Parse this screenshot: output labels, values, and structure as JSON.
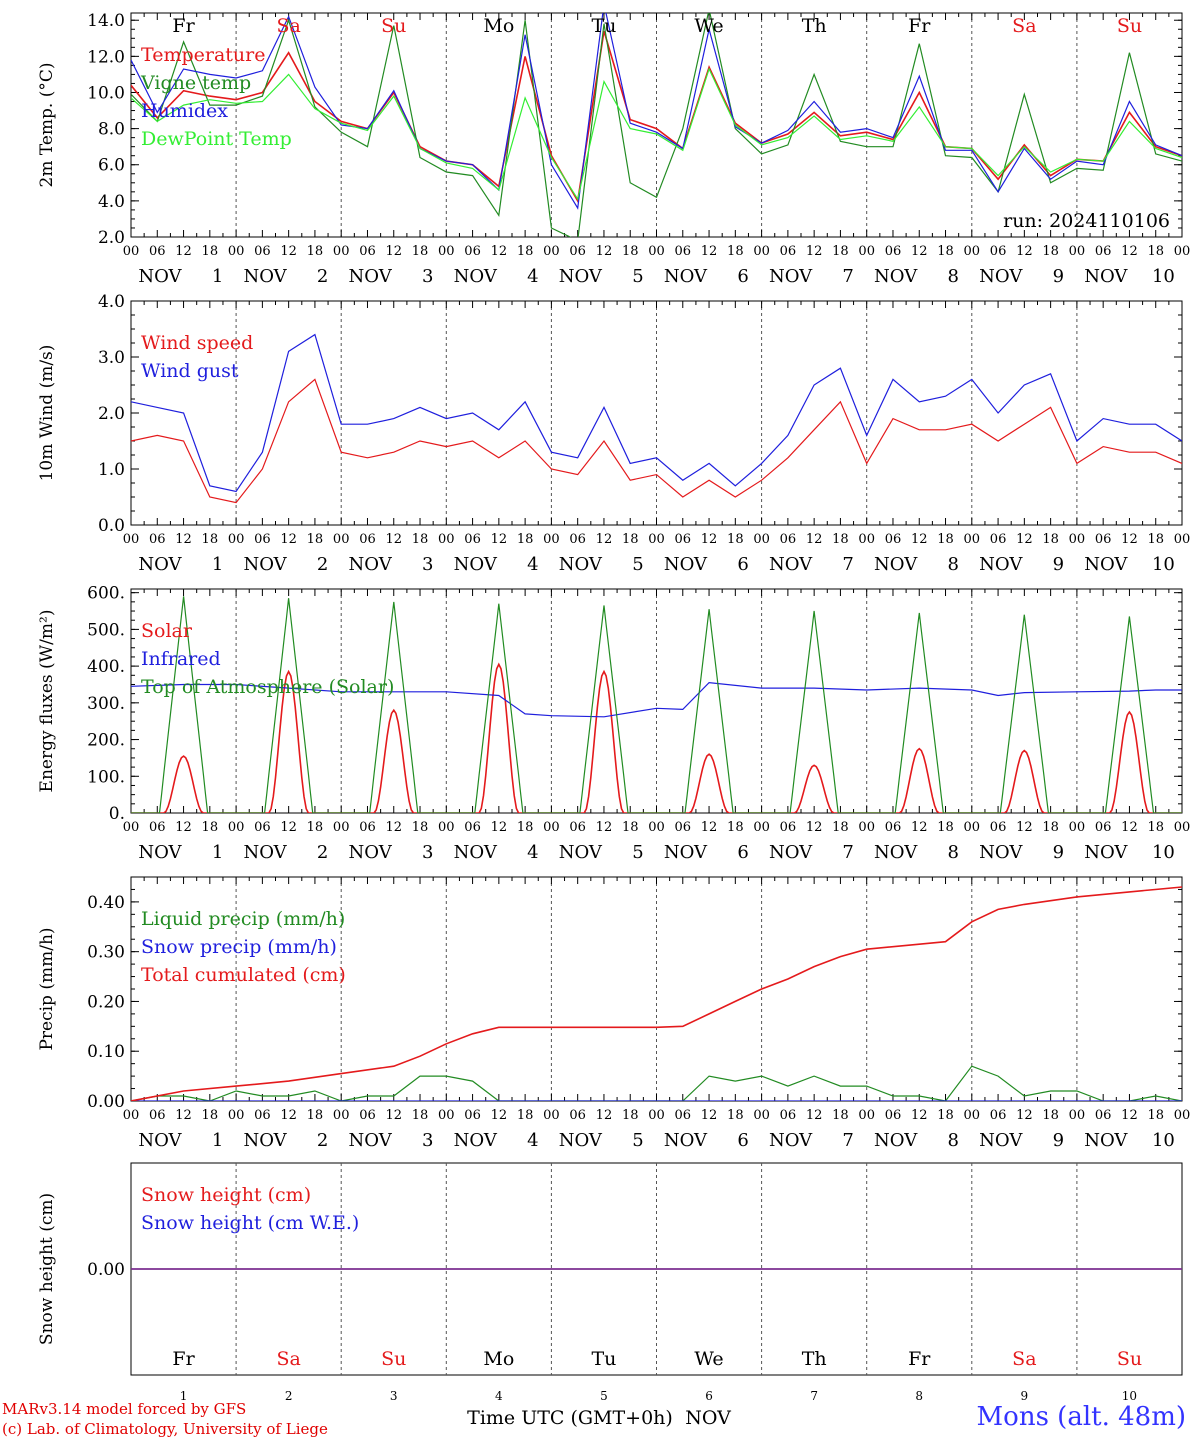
{
  "colors": {
    "red": "#e41a1c",
    "green": "#228b22",
    "blue": "#1f1fdd",
    "lightgreen": "#33ee33",
    "purple": "#7b2d8e",
    "weekend": "#e41a1c",
    "weekday": "#000000"
  },
  "run_label": "run: 2024110106",
  "footer": {
    "credit_line1": "MARv3.14 model forced by GFS",
    "credit_line2": "(c) Lab. of Climatology, University of Liege",
    "x_title": "Time UTC (GMT+0h)",
    "x_title_month": "NOV",
    "station": "Mons (alt. 48m)"
  },
  "chart_data": [
    {
      "type": "line",
      "ylabel": "2m Temp. (°C)",
      "ylim": [
        2.0,
        14.4
      ],
      "yticks": [
        "2.0",
        "4.0",
        "6.0",
        "8.0",
        "10.0",
        "12.0",
        "14.0"
      ],
      "yticks_values": [
        2,
        4,
        6,
        8,
        10,
        12,
        14
      ],
      "day_names_top": [
        "Fr",
        "Sa",
        "Su",
        "Mo",
        "Tu",
        "We",
        "Th",
        "Fr",
        "Sa",
        "Su"
      ],
      "weekend_days": [
        "Sa",
        "Su"
      ],
      "x_hour_labels": [
        "00",
        "06",
        "12",
        "18"
      ],
      "date_labels": [
        "NOV 1",
        "NOV 2",
        "NOV 3",
        "NOV 4",
        "NOV 5",
        "NOV 6",
        "NOV 7",
        "NOV 8",
        "NOV 9",
        "NOV 10"
      ],
      "x_unit": "hours since 2024-11-01 00 UTC",
      "xlim": [
        0,
        240
      ],
      "series": [
        {
          "name": "Temperature",
          "color": "#e41a1c",
          "x": [
            0,
            6,
            12,
            18,
            24,
            30,
            36,
            42,
            48,
            54,
            60,
            66,
            72,
            78,
            84,
            90,
            96,
            102,
            108,
            114,
            120,
            126,
            132,
            138,
            144,
            150,
            156,
            162,
            168,
            174,
            180,
            186,
            192,
            198,
            204,
            210,
            216,
            222,
            228,
            234,
            240
          ],
          "y": [
            10.4,
            8.6,
            10.1,
            9.8,
            9.6,
            10.0,
            12.2,
            9.5,
            8.4,
            8.0,
            10.0,
            7.0,
            6.2,
            6.0,
            4.8,
            12.0,
            6.5,
            4.0,
            13.4,
            8.5,
            8.0,
            6.9,
            11.4,
            8.3,
            7.2,
            7.7,
            8.9,
            7.6,
            7.8,
            7.4,
            10.0,
            7.0,
            6.9,
            5.2,
            7.1,
            5.4,
            6.3,
            6.2,
            8.9,
            7.0,
            6.5
          ]
        },
        {
          "name": "Vigne temp",
          "color": "#228b22",
          "x": [
            0,
            6,
            12,
            18,
            24,
            30,
            36,
            42,
            48,
            54,
            60,
            66,
            72,
            78,
            84,
            90,
            96,
            102,
            108,
            114,
            120,
            126,
            132,
            138,
            144,
            150,
            156,
            162,
            168,
            174,
            180,
            186,
            192,
            198,
            204,
            210,
            216,
            222,
            228,
            234,
            240
          ],
          "y": [
            9.9,
            8.4,
            12.8,
            9.3,
            9.3,
            9.8,
            14.0,
            9.2,
            7.8,
            7.0,
            13.7,
            6.4,
            5.6,
            5.4,
            3.2,
            14.0,
            2.5,
            1.8,
            13.8,
            5.0,
            4.2,
            8.0,
            14.6,
            8.0,
            6.6,
            7.1,
            11.0,
            7.3,
            7.0,
            7.0,
            12.7,
            6.5,
            6.4,
            4.5,
            9.9,
            5.0,
            5.8,
            5.7,
            12.2,
            6.6,
            6.2
          ]
        },
        {
          "name": "Humidex",
          "color": "#1f1fdd",
          "x": [
            0,
            6,
            12,
            18,
            24,
            30,
            36,
            42,
            48,
            54,
            60,
            66,
            72,
            78,
            84,
            90,
            96,
            102,
            108,
            114,
            120,
            126,
            132,
            138,
            144,
            150,
            156,
            162,
            168,
            174,
            180,
            186,
            192,
            198,
            204,
            210,
            216,
            222,
            228,
            234,
            240
          ],
          "y": [
            11.8,
            8.9,
            11.3,
            11.0,
            10.8,
            11.2,
            14.2,
            10.3,
            8.2,
            8.0,
            10.1,
            6.9,
            6.2,
            6.0,
            4.6,
            13.2,
            6.0,
            3.6,
            14.9,
            8.3,
            7.8,
            6.9,
            13.5,
            8.1,
            7.2,
            7.9,
            9.5,
            7.8,
            8.0,
            7.5,
            10.9,
            6.8,
            6.8,
            4.5,
            6.9,
            5.2,
            6.2,
            6.0,
            9.5,
            7.1,
            6.5
          ]
        },
        {
          "name": "DewPoint Temp",
          "color": "#33ee33",
          "x": [
            0,
            6,
            12,
            18,
            24,
            30,
            36,
            42,
            48,
            54,
            60,
            66,
            72,
            78,
            84,
            90,
            96,
            102,
            108,
            114,
            120,
            126,
            132,
            138,
            144,
            150,
            156,
            162,
            168,
            174,
            180,
            186,
            192,
            198,
            204,
            210,
            216,
            222,
            228,
            234,
            240
          ],
          "y": [
            9.7,
            8.4,
            9.3,
            9.6,
            9.4,
            9.5,
            11.0,
            9.1,
            8.3,
            7.9,
            9.8,
            6.9,
            6.1,
            5.8,
            4.6,
            9.7,
            6.4,
            4.1,
            10.6,
            8.0,
            7.7,
            6.8,
            11.3,
            8.2,
            7.1,
            7.5,
            8.7,
            7.4,
            7.6,
            7.3,
            9.2,
            7.0,
            6.9,
            5.4,
            7.0,
            5.6,
            6.3,
            6.2,
            8.4,
            6.9,
            6.4
          ]
        }
      ]
    },
    {
      "type": "line",
      "ylabel": "10m Wind (m/s)",
      "ylim": [
        0.0,
        4.0
      ],
      "yticks": [
        "0.0",
        "1.0",
        "2.0",
        "3.0",
        "4.0"
      ],
      "yticks_values": [
        0,
        1,
        2,
        3,
        4
      ],
      "date_labels": [
        "NOV 1",
        "NOV 2",
        "NOV 3",
        "NOV 4",
        "NOV 5",
        "NOV 6",
        "NOV 7",
        "NOV 8",
        "NOV 9",
        "NOV 10"
      ],
      "xlim": [
        0,
        240
      ],
      "series": [
        {
          "name": "Wind speed",
          "color": "#e41a1c",
          "x": [
            0,
            6,
            12,
            18,
            24,
            30,
            36,
            42,
            48,
            54,
            60,
            66,
            72,
            78,
            84,
            90,
            96,
            102,
            108,
            114,
            120,
            126,
            132,
            138,
            144,
            150,
            156,
            162,
            168,
            174,
            180,
            186,
            192,
            198,
            204,
            210,
            216,
            222,
            228,
            234,
            240
          ],
          "y": [
            1.5,
            1.6,
            1.5,
            0.5,
            0.4,
            1.0,
            2.2,
            2.6,
            1.3,
            1.2,
            1.3,
            1.5,
            1.4,
            1.5,
            1.2,
            1.5,
            1.0,
            0.9,
            1.5,
            0.8,
            0.9,
            0.5,
            0.8,
            0.5,
            0.8,
            1.2,
            1.7,
            2.2,
            1.1,
            1.9,
            1.7,
            1.7,
            1.8,
            1.5,
            1.8,
            2.1,
            1.1,
            1.4,
            1.3,
            1.3,
            1.1
          ]
        },
        {
          "name": "Wind gust",
          "color": "#1f1fdd",
          "x": [
            0,
            6,
            12,
            18,
            24,
            30,
            36,
            42,
            48,
            54,
            60,
            66,
            72,
            78,
            84,
            90,
            96,
            102,
            108,
            114,
            120,
            126,
            132,
            138,
            144,
            150,
            156,
            162,
            168,
            174,
            180,
            186,
            192,
            198,
            204,
            210,
            216,
            222,
            228,
            234,
            240
          ],
          "y": [
            2.2,
            2.1,
            2.0,
            0.7,
            0.6,
            1.3,
            3.1,
            3.4,
            1.8,
            1.8,
            1.9,
            2.1,
            1.9,
            2.0,
            1.7,
            2.2,
            1.3,
            1.2,
            2.1,
            1.1,
            1.2,
            0.8,
            1.1,
            0.7,
            1.1,
            1.6,
            2.5,
            2.8,
            1.6,
            2.6,
            2.2,
            2.3,
            2.6,
            2.0,
            2.5,
            2.7,
            1.5,
            1.9,
            1.8,
            1.8,
            1.5
          ]
        }
      ]
    },
    {
      "type": "line",
      "ylabel": "Energy fluxes (W/m²)",
      "ylim": [
        0,
        610
      ],
      "yticks": [
        "0.",
        "100.",
        "200.",
        "300.",
        "400.",
        "500.",
        "600."
      ],
      "yticks_values": [
        0,
        100,
        200,
        300,
        400,
        500,
        600
      ],
      "date_labels": [
        "NOV 1",
        "NOV 2",
        "NOV 3",
        "NOV 4",
        "NOV 5",
        "NOV 6",
        "NOV 7",
        "NOV 8",
        "NOV 9",
        "NOV 10"
      ],
      "xlim": [
        0,
        240
      ],
      "series": [
        {
          "name": "Solar",
          "color": "#e41a1c",
          "daily_peaks": [
            155,
            385,
            280,
            405,
            385,
            160,
            130,
            175,
            170,
            275
          ]
        },
        {
          "name": "Infrared",
          "color": "#1f1fdd",
          "x": [
            0,
            12,
            24,
            36,
            48,
            60,
            72,
            84,
            90,
            96,
            108,
            120,
            126,
            132,
            144,
            156,
            168,
            180,
            192,
            198,
            204,
            216,
            228,
            234,
            240
          ],
          "y": [
            345,
            350,
            350,
            340,
            330,
            330,
            330,
            320,
            270,
            265,
            262,
            285,
            282,
            355,
            340,
            340,
            335,
            340,
            335,
            320,
            328,
            330,
            332,
            335,
            335
          ]
        },
        {
          "name": "Top of Atmosphere (Solar)",
          "color": "#228b22",
          "daily_peaks": [
            590,
            585,
            575,
            570,
            565,
            555,
            550,
            545,
            540,
            535
          ]
        }
      ]
    },
    {
      "type": "line",
      "ylabel": "Precip (mm/h)",
      "ylim": [
        0.0,
        0.45
      ],
      "yticks": [
        "0.00",
        "0.10",
        "0.20",
        "0.30",
        "0.40"
      ],
      "yticks_values": [
        0,
        0.1,
        0.2,
        0.3,
        0.4
      ],
      "date_labels": [
        "NOV 1",
        "NOV 2",
        "NOV 3",
        "NOV 4",
        "NOV 5",
        "NOV 6",
        "NOV 7",
        "NOV 8",
        "NOV 9",
        "NOV 10"
      ],
      "xlim": [
        0,
        240
      ],
      "series": [
        {
          "name": "Liquid precip (mm/h)",
          "color": "#228b22",
          "x": [
            0,
            6,
            12,
            18,
            24,
            30,
            36,
            42,
            48,
            54,
            60,
            66,
            72,
            78,
            84,
            90,
            96,
            102,
            108,
            114,
            120,
            126,
            132,
            138,
            144,
            150,
            156,
            162,
            168,
            174,
            180,
            186,
            192,
            198,
            204,
            210,
            216,
            222,
            228,
            234,
            240
          ],
          "y": [
            0.0,
            0.01,
            0.01,
            0.0,
            0.02,
            0.01,
            0.01,
            0.02,
            0.0,
            0.01,
            0.01,
            0.05,
            0.05,
            0.04,
            0.0,
            0.0,
            0.0,
            0.0,
            0.0,
            0.0,
            0.0,
            0.0,
            0.05,
            0.04,
            0.05,
            0.03,
            0.05,
            0.03,
            0.03,
            0.01,
            0.01,
            0.0,
            0.07,
            0.05,
            0.01,
            0.02,
            0.02,
            0.0,
            0.0,
            0.01,
            0.0
          ]
        },
        {
          "name": "Snow precip (mm/h)",
          "color": "#1f1fdd",
          "x": [
            0,
            240
          ],
          "y": [
            0.0,
            0.0
          ]
        },
        {
          "name": "Total cumulated (cm)",
          "color": "#e41a1c",
          "x": [
            0,
            12,
            24,
            36,
            48,
            60,
            66,
            72,
            78,
            84,
            96,
            108,
            120,
            126,
            132,
            138,
            144,
            150,
            156,
            162,
            168,
            180,
            186,
            192,
            198,
            204,
            216,
            228,
            240
          ],
          "y": [
            0.0,
            0.02,
            0.03,
            0.04,
            0.055,
            0.07,
            0.09,
            0.115,
            0.135,
            0.148,
            0.148,
            0.148,
            0.148,
            0.15,
            0.175,
            0.2,
            0.225,
            0.245,
            0.27,
            0.29,
            0.305,
            0.315,
            0.32,
            0.36,
            0.385,
            0.395,
            0.41,
            0.42,
            0.43
          ]
        }
      ]
    },
    {
      "type": "line",
      "ylabel": "Snow height (cm)",
      "ylim": [
        -1,
        1
      ],
      "yticks": [
        "0.00"
      ],
      "yticks_values": [
        0
      ],
      "day_names_bottom": [
        "Fr",
        "Sa",
        "Su",
        "Mo",
        "Tu",
        "We",
        "Th",
        "Fr",
        "Sa",
        "Su"
      ],
      "day_numbers": [
        "1",
        "2",
        "3",
        "4",
        "5",
        "6",
        "7",
        "8",
        "9",
        "10"
      ],
      "xlim": [
        0,
        240
      ],
      "series": [
        {
          "name": "Snow height (cm)",
          "color": "#e41a1c",
          "x": [
            0,
            240
          ],
          "y": [
            0,
            0
          ]
        },
        {
          "name": "Snow height (cm W.E.)",
          "color": "#1f1fdd",
          "x": [
            0,
            240
          ],
          "y": [
            0,
            0
          ]
        }
      ]
    }
  ]
}
